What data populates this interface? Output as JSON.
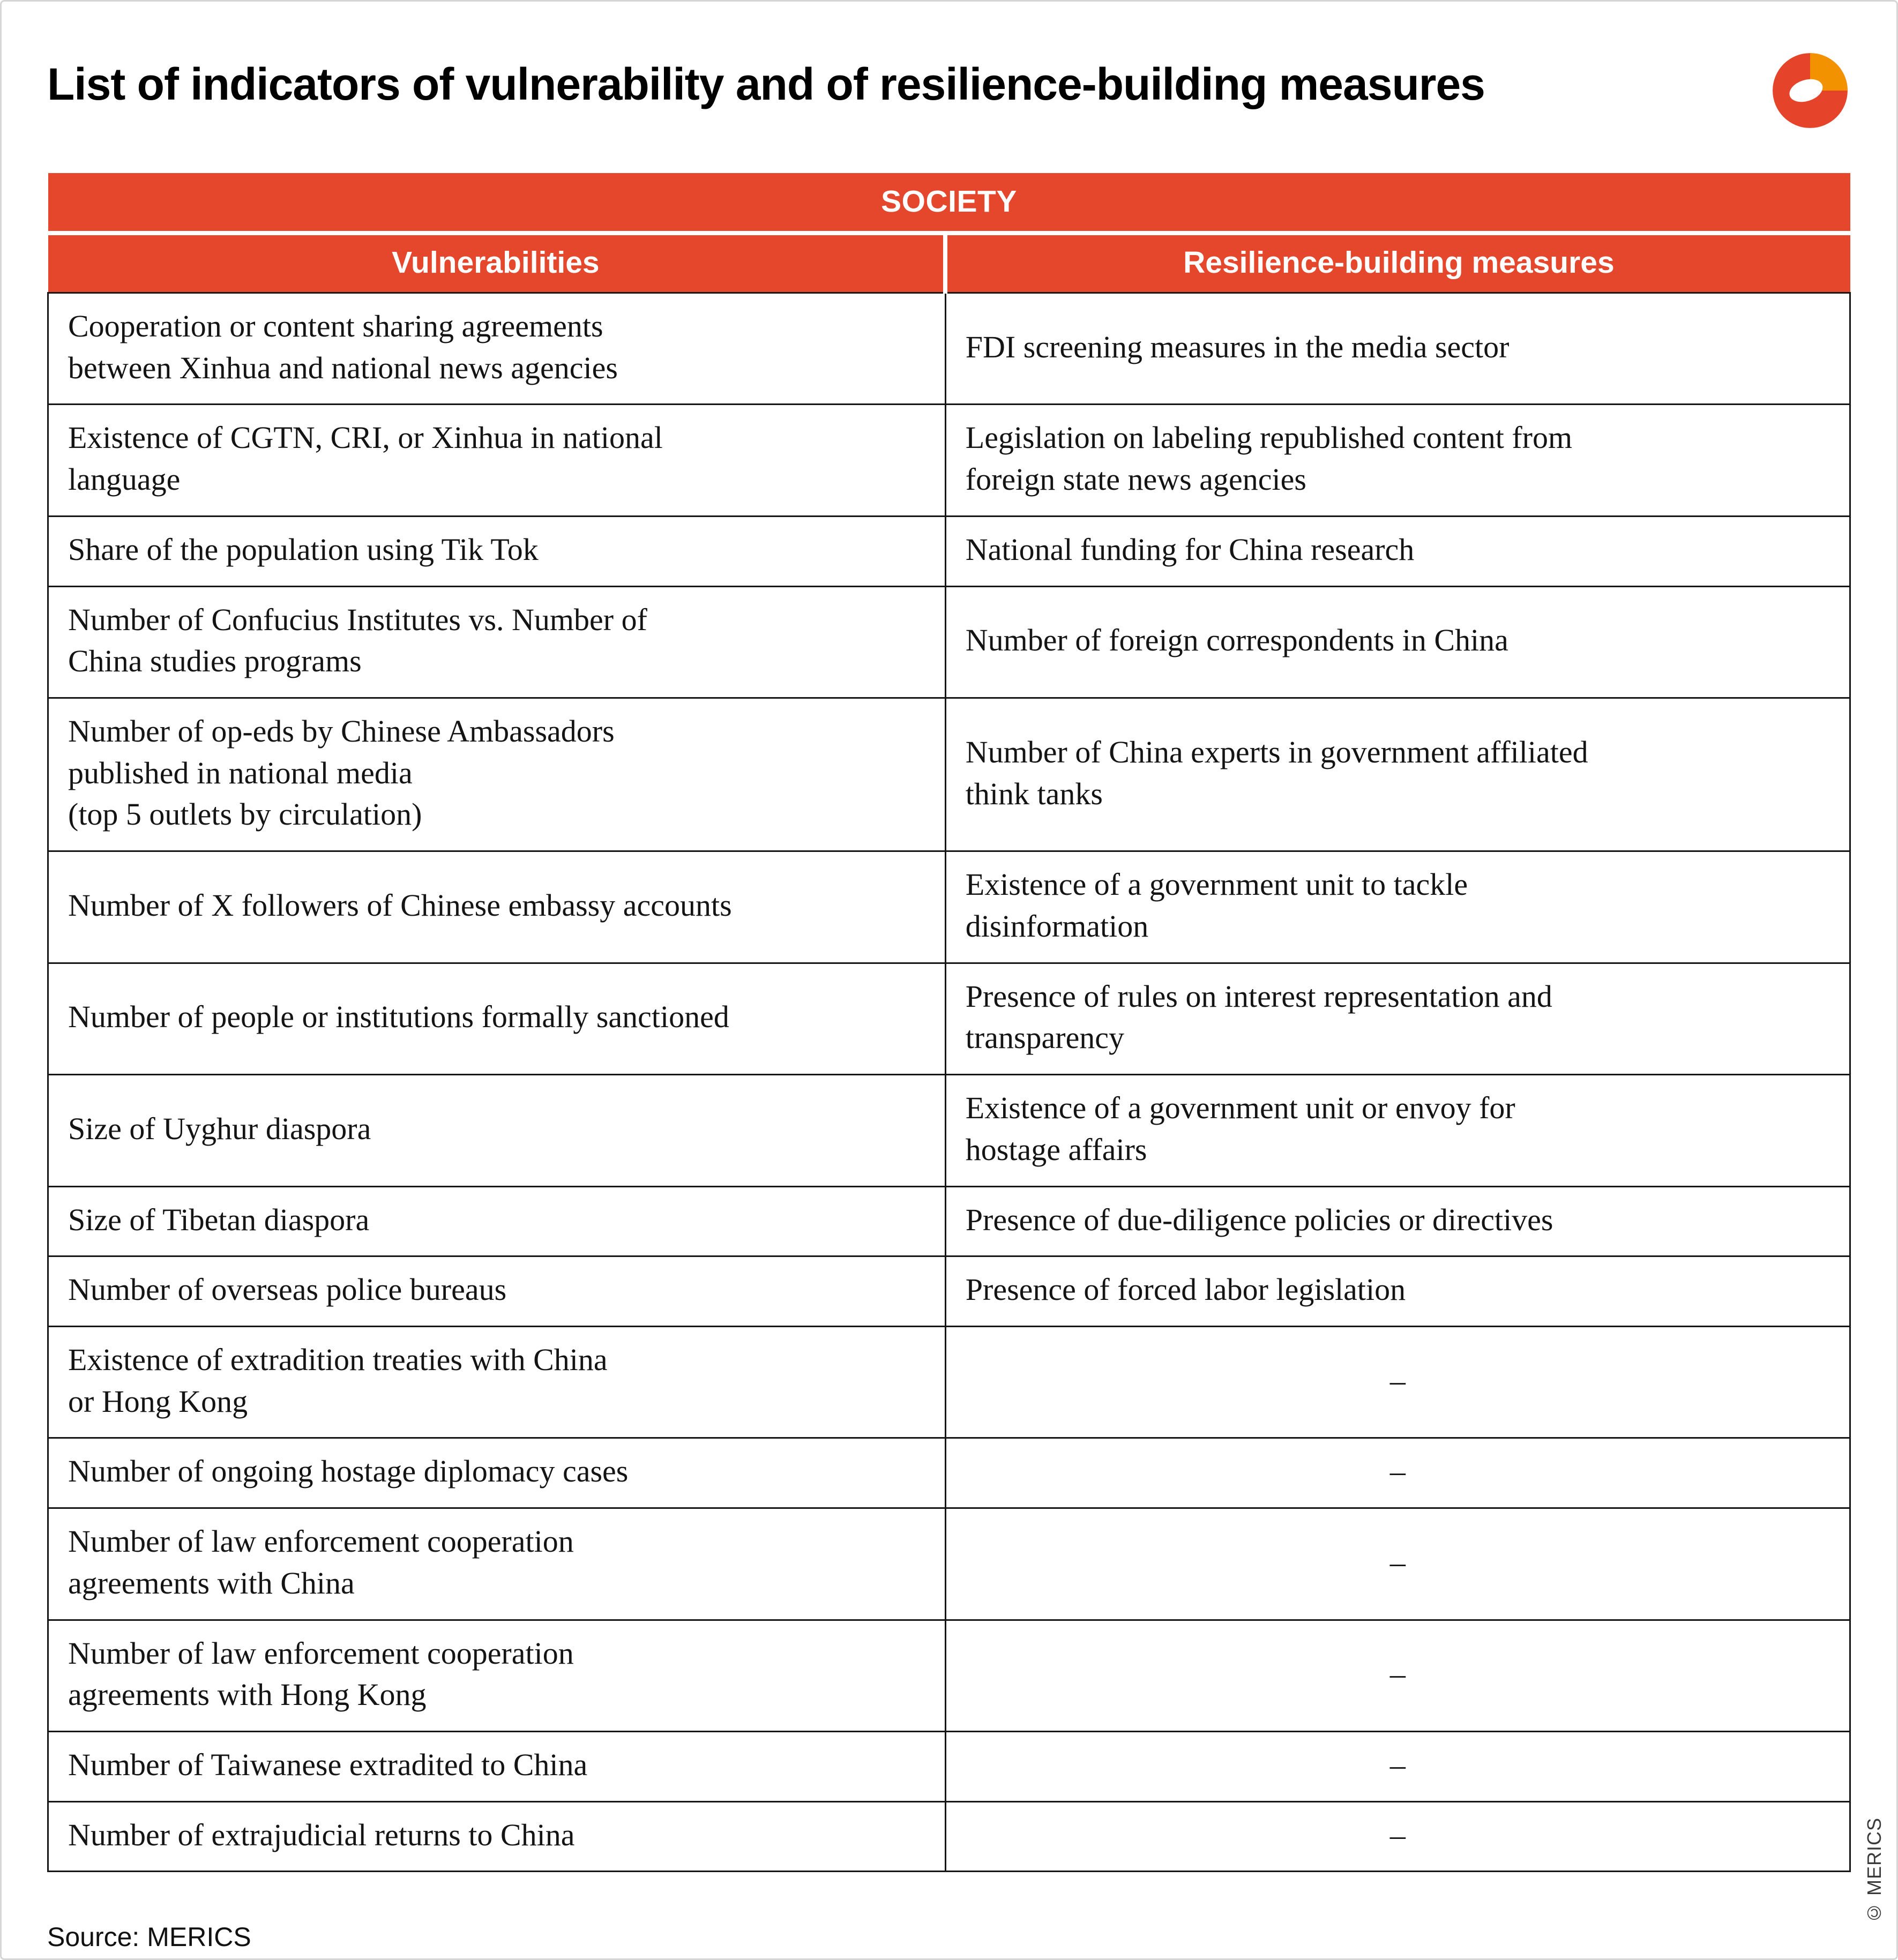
{
  "page": {
    "title": "List of indicators of vulnerability and of resilience-building measures",
    "source": "Source: MERICS",
    "copyright": "© MERICS"
  },
  "colors": {
    "accent_red": "#E5472D",
    "logo_orange": "#F39200",
    "logo_red": "#E5432A",
    "border_dark": "#161616"
  },
  "table": {
    "section_header": "SOCIETY",
    "columns": [
      "Vulnerabilities",
      "Resilience-building measures"
    ],
    "empty_marker": "–",
    "rows": [
      {
        "vulnerability": "Cooperation or content sharing agreements\nbetween Xinhua and national news agencies",
        "measure": "FDI screening measures in the media sector"
      },
      {
        "vulnerability": "Existence of CGTN, CRI, or Xinhua in national\nlanguage",
        "measure": "Legislation on labeling republished content from\nforeign state news agencies"
      },
      {
        "vulnerability": "Share of the population using Tik Tok",
        "measure": "National funding for China research"
      },
      {
        "vulnerability": "Number of Confucius Institutes vs. Number of\nChina studies programs",
        "measure": "Number of foreign correspondents in China"
      },
      {
        "vulnerability": "Number of op-eds by Chinese Ambassadors\npublished in national media\n(top 5 outlets by circulation)",
        "measure": "Number of China experts in government affiliated\nthink tanks"
      },
      {
        "vulnerability": "Number of X followers of Chinese embassy accounts",
        "measure": "Existence of a government unit to tackle\ndisinformation"
      },
      {
        "vulnerability": "Number of people or institutions formally sanctioned",
        "measure": "Presence of rules on interest representation and\ntransparency"
      },
      {
        "vulnerability": "Size of Uyghur diaspora",
        "measure": "Existence of a government unit or envoy for\nhostage affairs"
      },
      {
        "vulnerability": "Size of Tibetan diaspora",
        "measure": "Presence of due-diligence policies or directives"
      },
      {
        "vulnerability": "Number of overseas police bureaus",
        "measure": "Presence of forced labor legislation"
      },
      {
        "vulnerability": "Existence of extradition treaties with China\nor Hong Kong",
        "measure": "–"
      },
      {
        "vulnerability": "Number of ongoing hostage diplomacy cases",
        "measure": "–"
      },
      {
        "vulnerability": "Number of law enforcement cooperation\nagreements with China",
        "measure": "–"
      },
      {
        "vulnerability": "Number of law enforcement cooperation\nagreements with Hong Kong",
        "measure": "–"
      },
      {
        "vulnerability": "Number of Taiwanese extradited to China",
        "measure": "–"
      },
      {
        "vulnerability": "Number of extrajudicial returns to China",
        "measure": "–"
      }
    ]
  }
}
